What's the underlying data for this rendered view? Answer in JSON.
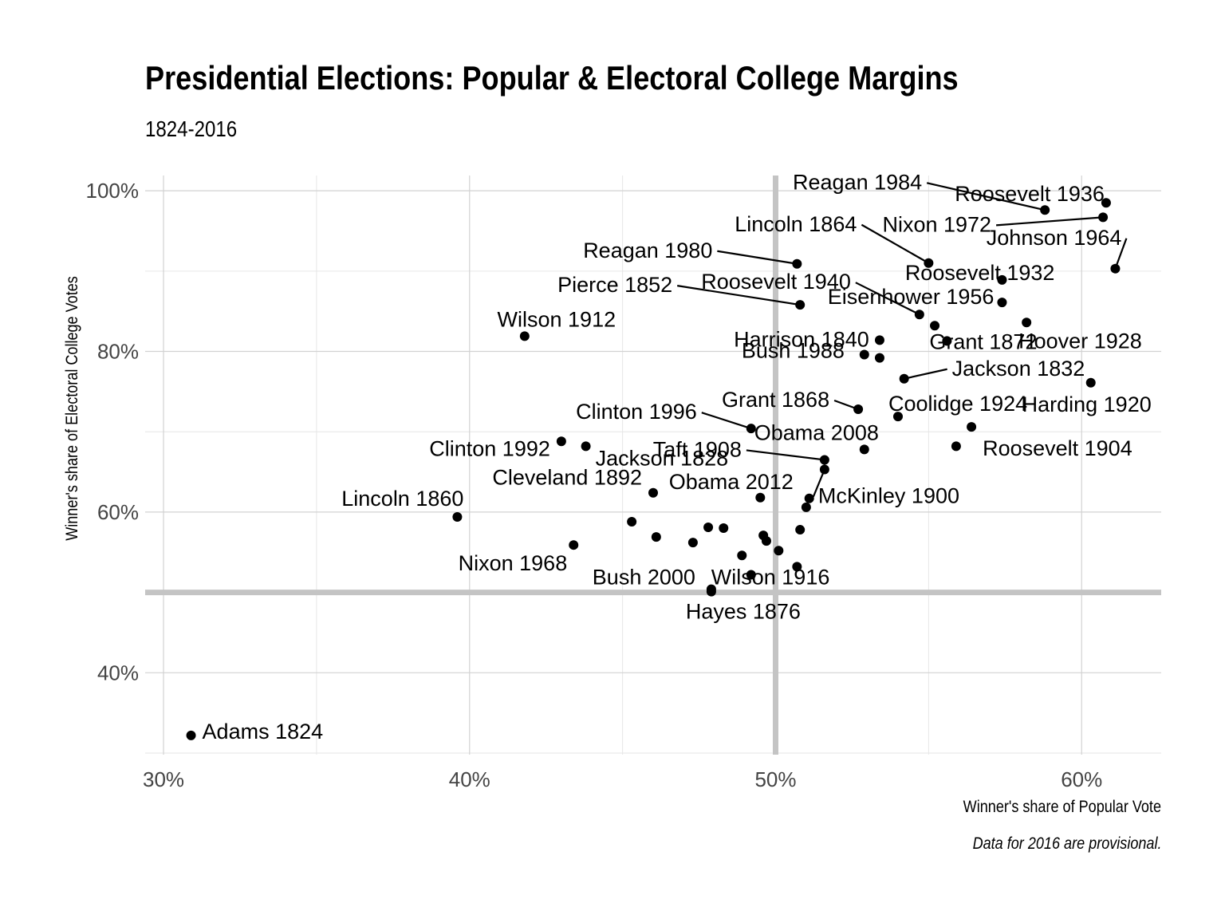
{
  "chart_data": {
    "type": "scatter",
    "title": "Presidential Elections: Popular & Electoral College Margins",
    "subtitle": "1824-2016",
    "xlabel": "Winner's share of Popular Vote",
    "ylabel": "Winner's share of Electoral College Votes",
    "caption": "Data for 2016 are provisional.",
    "xlim": [
      29.4,
      62.6
    ],
    "ylim": [
      29.8,
      101.9
    ],
    "x_ticks": [
      30,
      40,
      50,
      60
    ],
    "x_tick_labels": [
      "30%",
      "40%",
      "50%",
      "60%"
    ],
    "y_ticks": [
      40,
      60,
      80,
      100
    ],
    "y_tick_labels": [
      "40%",
      "60%",
      "80%",
      "100%"
    ],
    "reference_lines": {
      "x": 50,
      "y": 50
    },
    "grid": true,
    "legend": "none",
    "points": [
      {
        "x": 30.9,
        "y": 32.2,
        "label": "Adams 1824"
      },
      {
        "x": 43.8,
        "y": 68.2,
        "label": "Jackson 1828"
      },
      {
        "x": 54.2,
        "y": 76.6,
        "label": "Jackson 1832"
      },
      {
        "x": 50.8,
        "y": 57.8,
        "label": ""
      },
      {
        "x": 52.9,
        "y": 79.6,
        "label": "Harrison 1840"
      },
      {
        "x": 49.5,
        "y": 61.8,
        "label": ""
      },
      {
        "x": 47.3,
        "y": 56.2,
        "label": ""
      },
      {
        "x": 50.8,
        "y": 85.8,
        "label": "Pierce 1852"
      },
      {
        "x": 45.3,
        "y": 58.8,
        "label": ""
      },
      {
        "x": 39.6,
        "y": 59.4,
        "label": "Lincoln 1860"
      },
      {
        "x": 55.0,
        "y": 91.0,
        "label": "Lincoln 1864"
      },
      {
        "x": 52.7,
        "y": 72.8,
        "label": "Grant 1868"
      },
      {
        "x": 55.6,
        "y": 81.3,
        "label": "Grant 1872"
      },
      {
        "x": 47.9,
        "y": 50.1,
        "label": "Hayes 1876"
      },
      {
        "x": 48.3,
        "y": 58.0,
        "label": ""
      },
      {
        "x": 48.9,
        "y": 54.6,
        "label": ""
      },
      {
        "x": 47.8,
        "y": 58.1,
        "label": ""
      },
      {
        "x": 46.0,
        "y": 62.4,
        "label": "Cleveland 1892"
      },
      {
        "x": 51.0,
        "y": 60.6,
        "label": ""
      },
      {
        "x": 51.6,
        "y": 65.3,
        "label": "McKinley 1900"
      },
      {
        "x": 56.4,
        "y": 70.6,
        "label": "Roosevelt 1904"
      },
      {
        "x": 51.6,
        "y": 66.5,
        "label": "Taft 1908"
      },
      {
        "x": 41.8,
        "y": 81.9,
        "label": "Wilson 1912"
      },
      {
        "x": 49.2,
        "y": 52.2,
        "label": "Wilson 1916"
      },
      {
        "x": 60.3,
        "y": 76.1,
        "label": "Harding 1920"
      },
      {
        "x": 54.0,
        "y": 71.9,
        "label": "Coolidge 1924"
      },
      {
        "x": 58.2,
        "y": 83.6,
        "label": "Hoover 1928"
      },
      {
        "x": 57.4,
        "y": 88.9,
        "label": "Roosevelt 1932"
      },
      {
        "x": 60.8,
        "y": 98.5,
        "label": "Roosevelt 1936"
      },
      {
        "x": 54.7,
        "y": 84.6,
        "label": "Roosevelt 1940"
      },
      {
        "x": 53.4,
        "y": 81.4,
        "label": ""
      },
      {
        "x": 49.6,
        "y": 57.1,
        "label": ""
      },
      {
        "x": 55.2,
        "y": 83.2,
        "label": ""
      },
      {
        "x": 57.4,
        "y": 86.1,
        "label": "Eisenhower 1956"
      },
      {
        "x": 49.7,
        "y": 56.4,
        "label": ""
      },
      {
        "x": 61.1,
        "y": 90.3,
        "label": "Johnson 1964"
      },
      {
        "x": 43.4,
        "y": 55.9,
        "label": "Nixon 1968"
      },
      {
        "x": 60.7,
        "y": 96.7,
        "label": "Nixon 1972"
      },
      {
        "x": 50.1,
        "y": 55.2,
        "label": ""
      },
      {
        "x": 50.7,
        "y": 90.9,
        "label": "Reagan 1980"
      },
      {
        "x": 58.8,
        "y": 97.6,
        "label": "Reagan 1984"
      },
      {
        "x": 53.4,
        "y": 79.2,
        "label": "Bush 1988"
      },
      {
        "x": 43.0,
        "y": 68.8,
        "label": "Clinton 1992"
      },
      {
        "x": 49.2,
        "y": 70.4,
        "label": "Clinton 1996"
      },
      {
        "x": 47.9,
        "y": 50.4,
        "label": "Bush 2000"
      },
      {
        "x": 50.7,
        "y": 53.2,
        "label": ""
      },
      {
        "x": 52.9,
        "y": 67.8,
        "label": "Obama 2008"
      },
      {
        "x": 51.1,
        "y": 61.7,
        "label": "Obama 2012"
      },
      {
        "x": 46.1,
        "y": 56.9,
        "label": ""
      },
      {
        "x": 55.9,
        "y": 68.2,
        "label": ""
      }
    ]
  }
}
